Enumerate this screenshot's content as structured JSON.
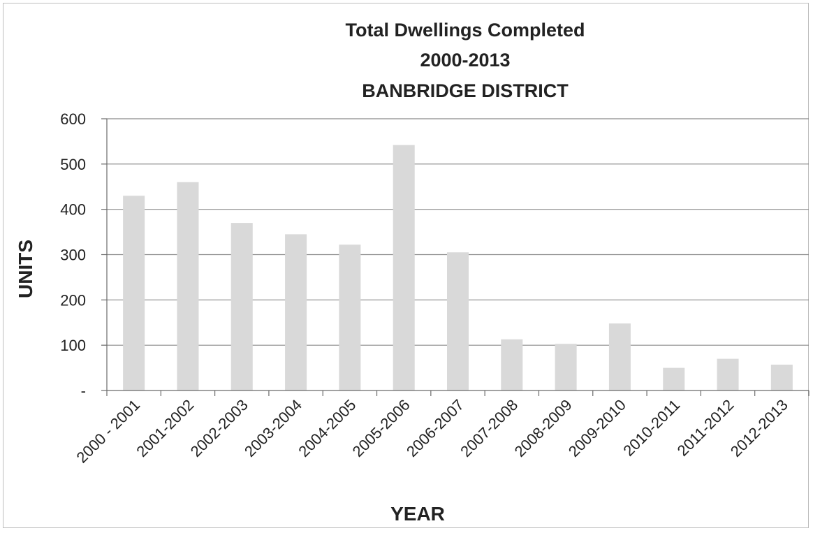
{
  "chart_data": {
    "type": "bar",
    "title_lines": [
      "Total Dwellings Completed",
      "2000-2013",
      "BANBRIDGE DISTRICT"
    ],
    "xlabel": "YEAR",
    "ylabel": "UNITS",
    "categories": [
      "2000 - 2001",
      "2001-2002",
      "2002-2003",
      "2003-2004",
      "2004-2005",
      "2005-2006",
      "2006-2007",
      "2007-2008",
      "2008-2009",
      "2009-2010",
      "2010-2011",
      "2011-2012",
      "2012-2013"
    ],
    "values": [
      430,
      460,
      370,
      345,
      322,
      542,
      305,
      113,
      103,
      148,
      50,
      70,
      57
    ],
    "y_ticks": [
      0,
      100,
      200,
      300,
      400,
      500,
      600
    ],
    "y_tick_labels": [
      "-",
      "100",
      "200",
      "300",
      "400",
      "500",
      "600"
    ],
    "ylim": [
      0,
      600
    ],
    "grid": true,
    "legend": "none",
    "bar_color": "#d9d9d9"
  }
}
